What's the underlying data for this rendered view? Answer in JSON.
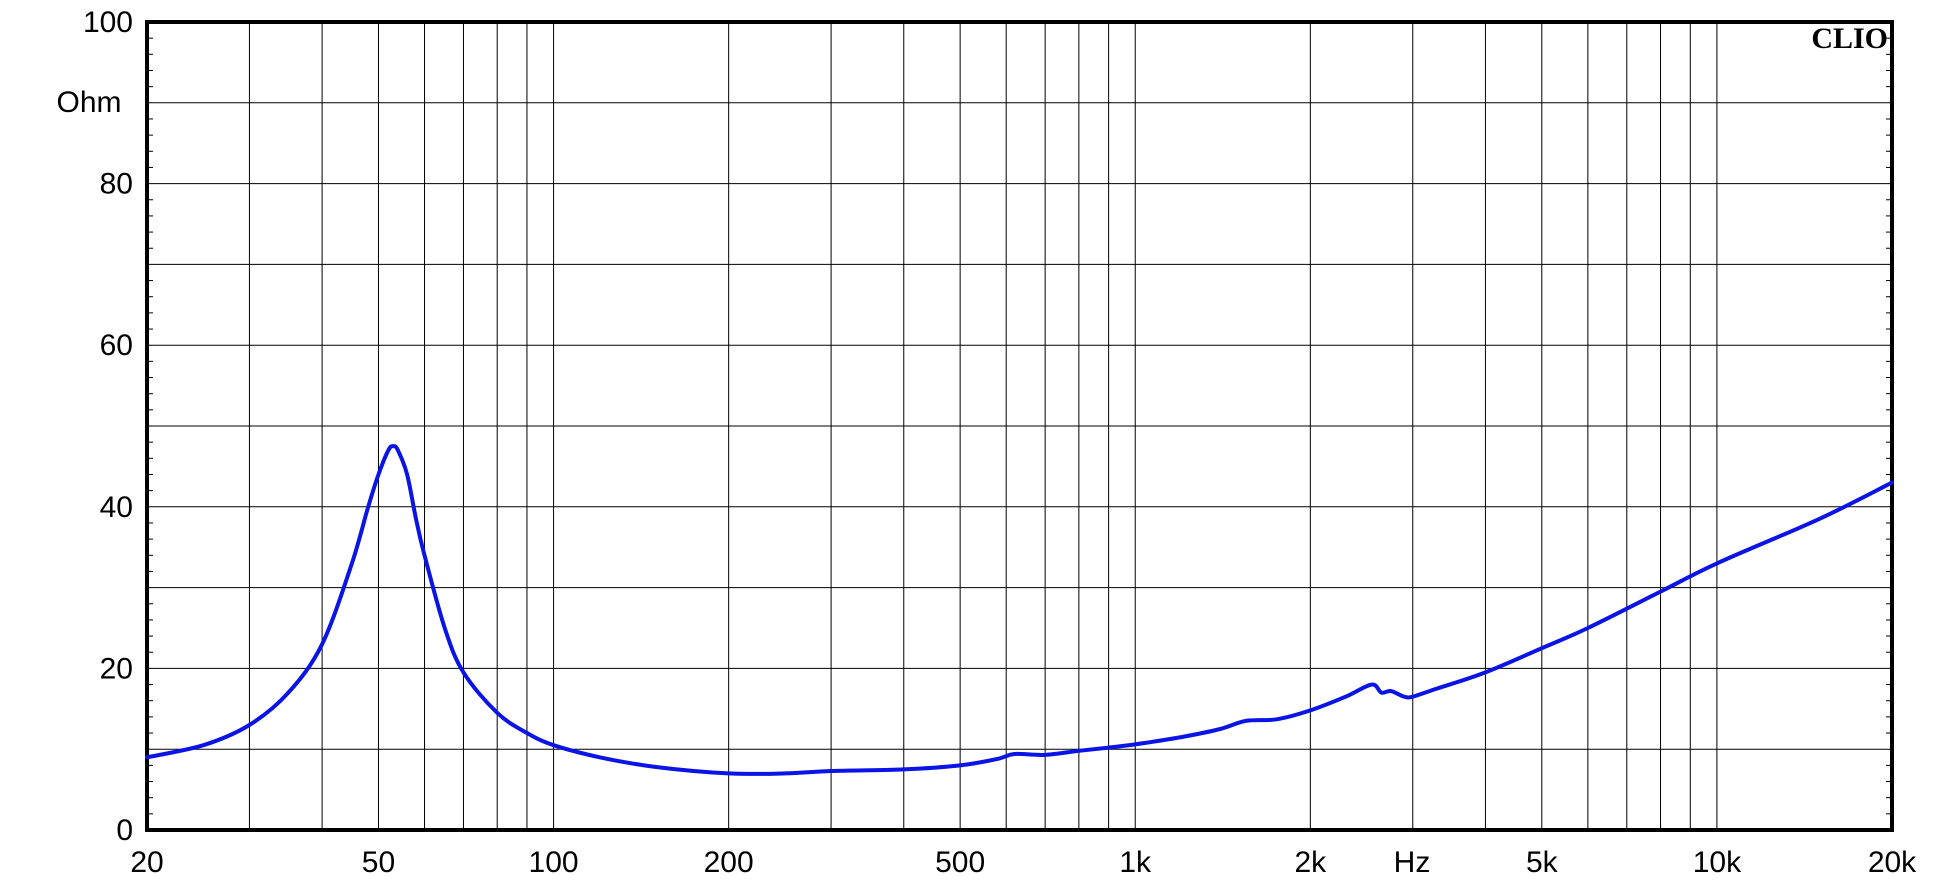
{
  "chart_data": {
    "type": "line",
    "title": "",
    "xlabel": "Hz",
    "ylabel": "Ohm",
    "brand": "CLIO",
    "x_scale": "log",
    "xlim": [
      20,
      20000
    ],
    "ylim": [
      0,
      100
    ],
    "grid": true,
    "x_tick_labels": [
      {
        "value": 20,
        "label": "20"
      },
      {
        "value": 50,
        "label": "50"
      },
      {
        "value": 100,
        "label": "100"
      },
      {
        "value": 200,
        "label": "200"
      },
      {
        "value": 500,
        "label": "500"
      },
      {
        "value": 1000,
        "label": "1k"
      },
      {
        "value": 2000,
        "label": "2k"
      },
      {
        "value": 5000,
        "label": "5k"
      },
      {
        "value": 10000,
        "label": "10k"
      },
      {
        "value": 20000,
        "label": "20k"
      }
    ],
    "y_tick_labels": [
      {
        "value": 0,
        "label": "0"
      },
      {
        "value": 20,
        "label": "20"
      },
      {
        "value": 40,
        "label": "40"
      },
      {
        "value": 60,
        "label": "60"
      },
      {
        "value": 80,
        "label": "80"
      },
      {
        "value": 100,
        "label": "100"
      }
    ],
    "series": [
      {
        "color": "#0a14e6",
        "points": [
          [
            20,
            9.0
          ],
          [
            25,
            10.5
          ],
          [
            30,
            13.0
          ],
          [
            35,
            17.0
          ],
          [
            40,
            23.0
          ],
          [
            45,
            33.0
          ],
          [
            48,
            40.0
          ],
          [
            50,
            44.0
          ],
          [
            52,
            47.0
          ],
          [
            53,
            47.5
          ],
          [
            54,
            47.0
          ],
          [
            56,
            44.0
          ],
          [
            58,
            38.5
          ],
          [
            60,
            34.0
          ],
          [
            65,
            25.0
          ],
          [
            70,
            19.5
          ],
          [
            80,
            14.5
          ],
          [
            90,
            12.0
          ],
          [
            100,
            10.5
          ],
          [
            120,
            9.0
          ],
          [
            150,
            7.8
          ],
          [
            200,
            7.0
          ],
          [
            250,
            7.0
          ],
          [
            300,
            7.3
          ],
          [
            400,
            7.5
          ],
          [
            500,
            8.0
          ],
          [
            580,
            8.8
          ],
          [
            620,
            9.4
          ],
          [
            700,
            9.3
          ],
          [
            800,
            9.8
          ],
          [
            900,
            10.2
          ],
          [
            1000,
            10.6
          ],
          [
            1200,
            11.5
          ],
          [
            1400,
            12.5
          ],
          [
            1550,
            13.5
          ],
          [
            1750,
            13.7
          ],
          [
            2000,
            14.8
          ],
          [
            2300,
            16.5
          ],
          [
            2550,
            18.0
          ],
          [
            2650,
            17.0
          ],
          [
            2750,
            17.2
          ],
          [
            2900,
            16.5
          ],
          [
            3000,
            16.5
          ],
          [
            3300,
            17.5
          ],
          [
            4000,
            19.5
          ],
          [
            5000,
            22.5
          ],
          [
            6000,
            25.0
          ],
          [
            8000,
            29.5
          ],
          [
            10000,
            33.0
          ],
          [
            15000,
            38.5
          ],
          [
            20000,
            43.0
          ]
        ]
      }
    ]
  }
}
